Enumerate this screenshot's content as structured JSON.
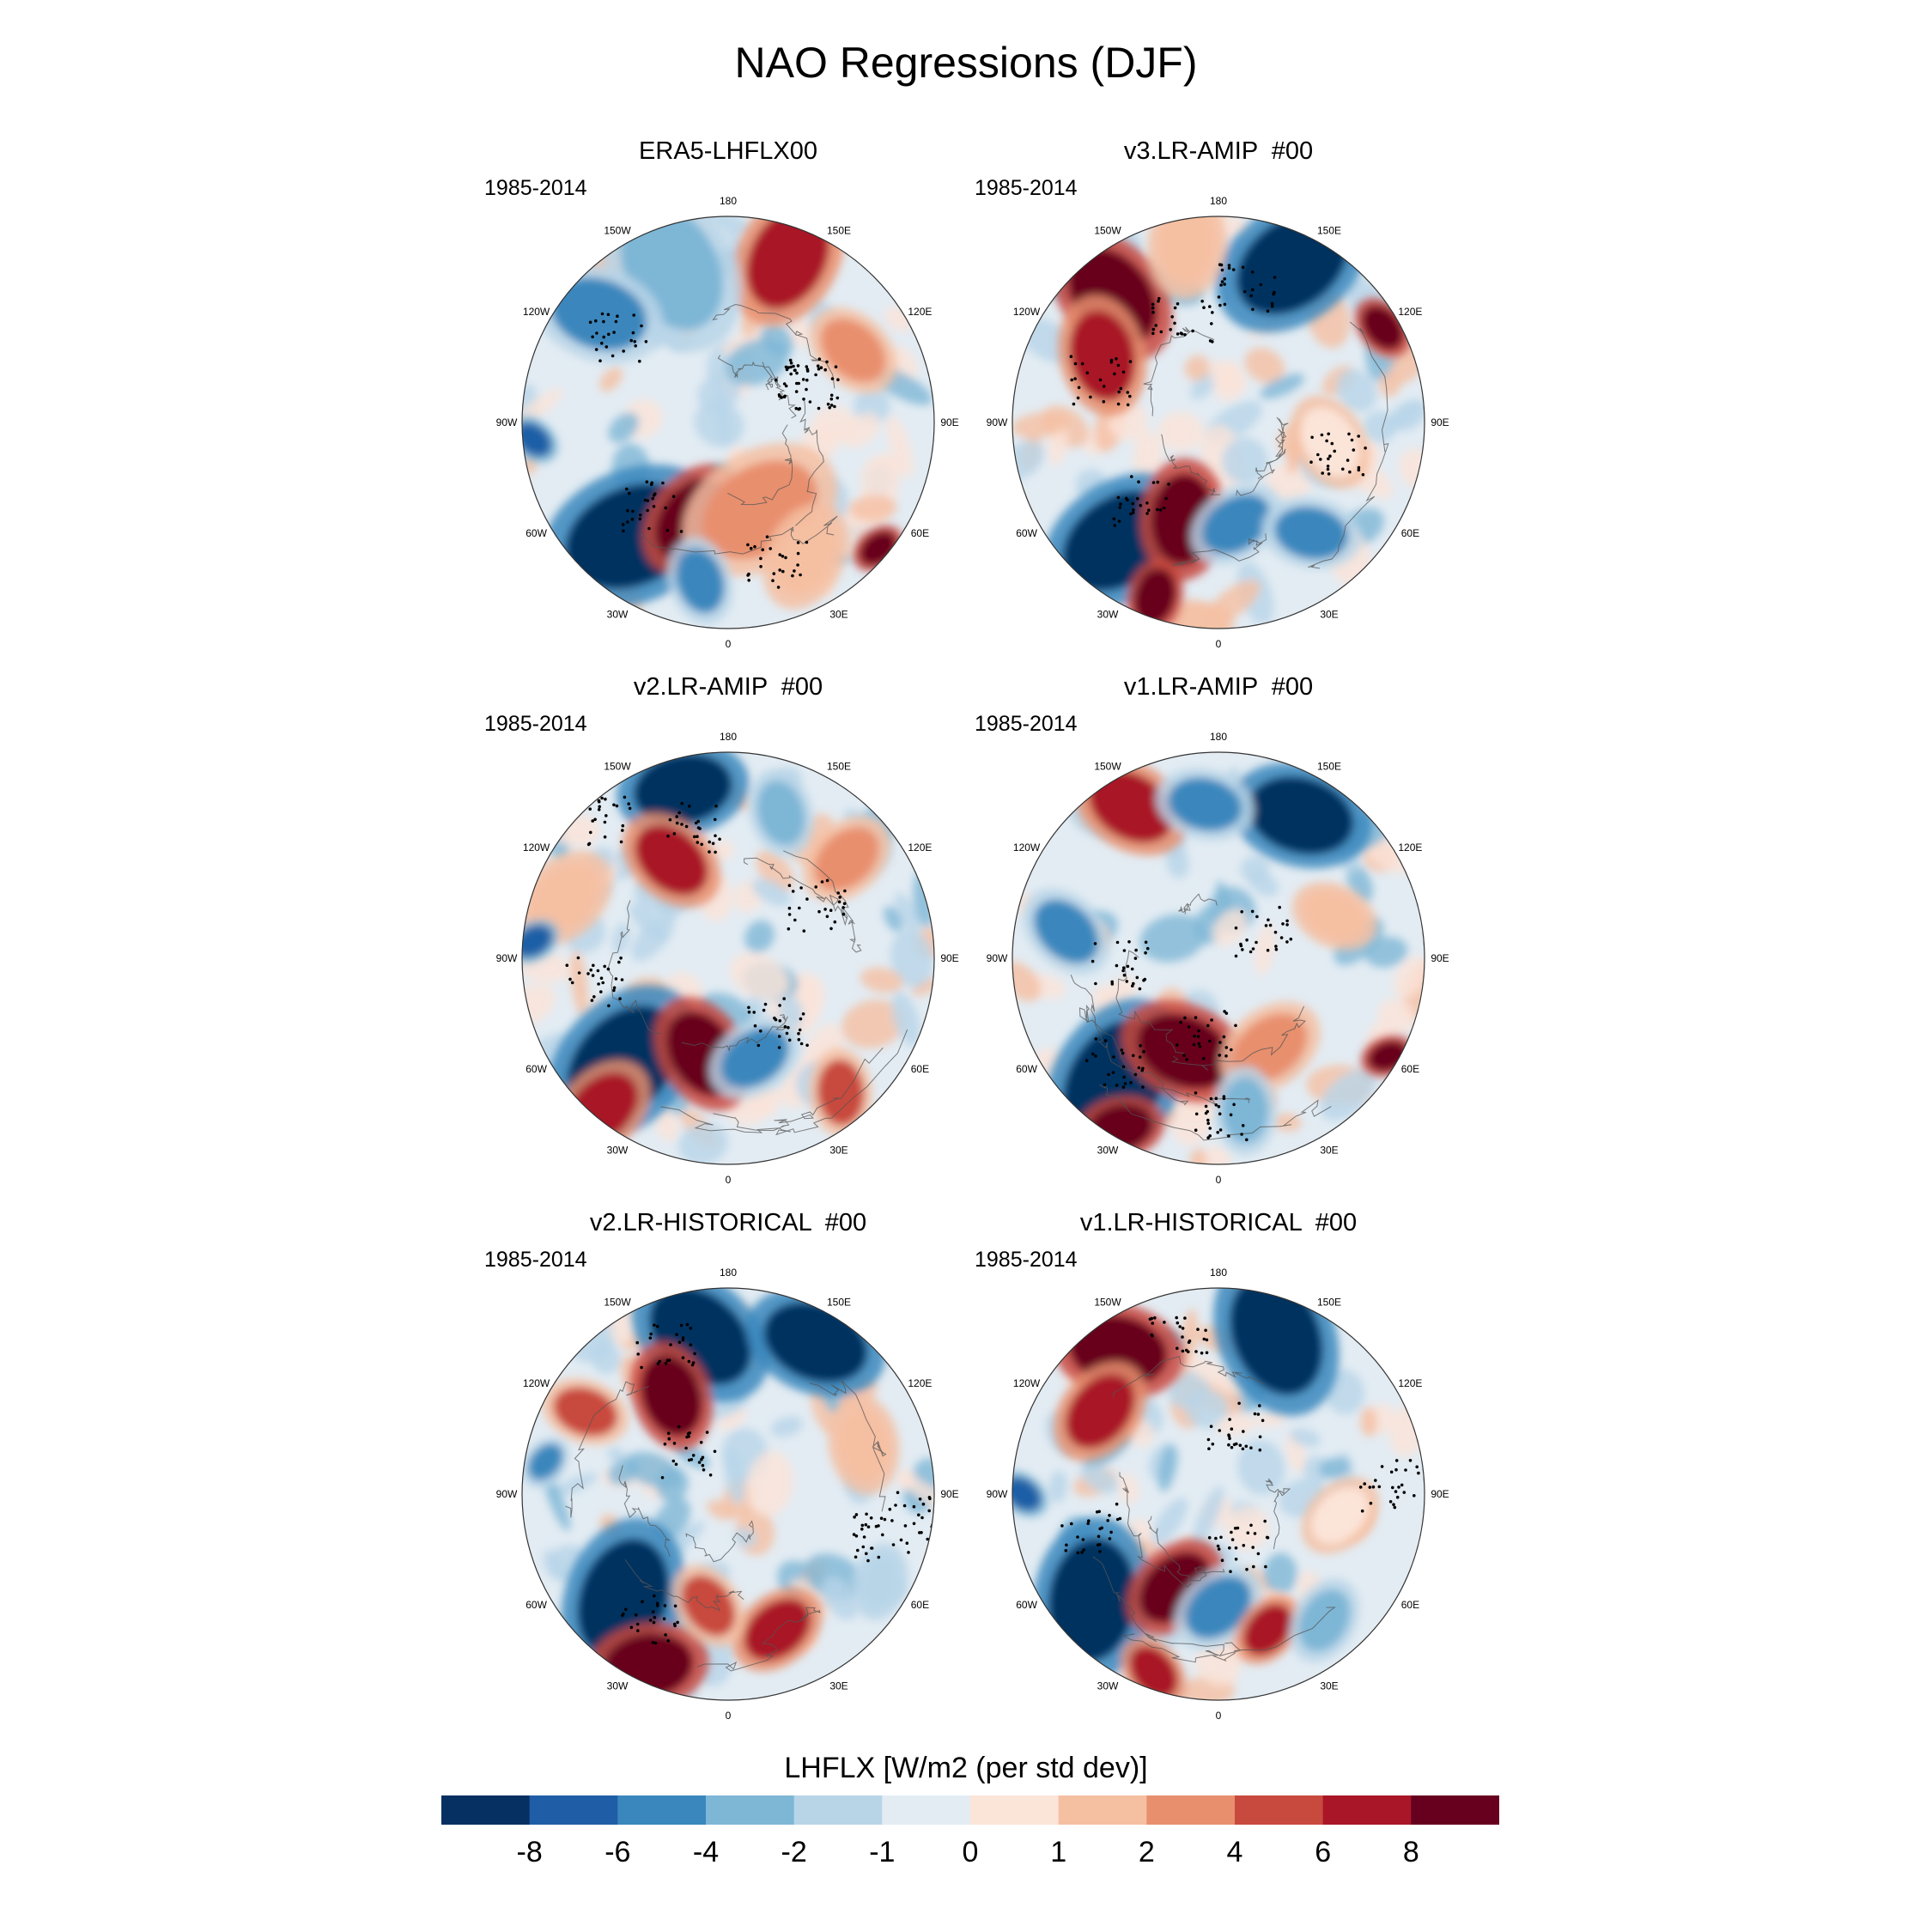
{
  "figure": {
    "title": "NAO Regressions (DJF)",
    "panels": [
      {
        "title": "ERA5-LHFLX00",
        "years": "1985-2014"
      },
      {
        "title": "v3.LR-AMIP  #00",
        "years": "1985-2014"
      },
      {
        "title": "v2.LR-AMIP  #00",
        "years": "1985-2014"
      },
      {
        "title": "v1.LR-AMIP  #00",
        "years": "1985-2014"
      },
      {
        "title": "v2.LR-HISTORICAL  #00",
        "years": "1985-2014"
      },
      {
        "title": "v1.LR-HISTORICAL  #00",
        "years": "1985-2014"
      }
    ],
    "longitude_labels": [
      {
        "lon": 180,
        "label": "180"
      },
      {
        "lon": 150,
        "label": "150E"
      },
      {
        "lon": 120,
        "label": "120E"
      },
      {
        "lon": 90,
        "label": "90E"
      },
      {
        "lon": 60,
        "label": "60E"
      },
      {
        "lon": 30,
        "label": "30E"
      },
      {
        "lon": 0,
        "label": "0"
      },
      {
        "lon": -30,
        "label": "30W"
      },
      {
        "lon": -60,
        "label": "60W"
      },
      {
        "lon": -90,
        "label": "90W"
      },
      {
        "lon": -120,
        "label": "120W"
      },
      {
        "lon": -150,
        "label": "150W"
      }
    ],
    "colorbar": {
      "title": "LHFLX [W/m2 (per std dev)]",
      "colors": [
        "#053061",
        "#1f5ea6",
        "#3a87bd",
        "#7eb6d6",
        "#b8d5e8",
        "#e3ecf3",
        "#fbe4d8",
        "#f5bfa2",
        "#e88f6e",
        "#c8493e",
        "#a91627",
        "#67001f"
      ],
      "tick_labels": [
        "-8",
        "-6",
        "-4",
        "-2",
        "-1",
        "0",
        "1",
        "2",
        "4",
        "6",
        "8"
      ]
    }
  }
}
